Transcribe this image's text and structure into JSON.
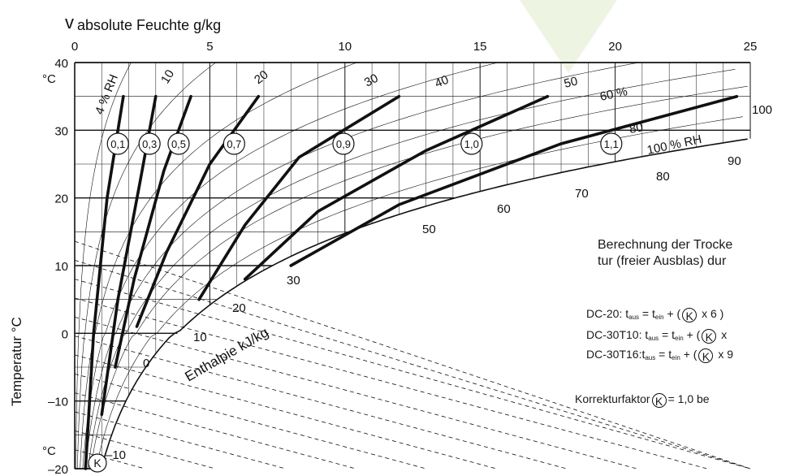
{
  "chart_data": {
    "type": "line",
    "title": "",
    "xlabel": "absolute Feuchte g/kg",
    "x_axis_symbol": "v",
    "ylabel": "Temperatur °C",
    "y_unit_top": "°C",
    "y_unit_bottom": "°C",
    "xlim": [
      0,
      25
    ],
    "ylim": [
      -20,
      40
    ],
    "x_ticks": [
      "0",
      "5",
      "10",
      "15",
      "20",
      "25"
    ],
    "y_ticks": [
      "40",
      "30",
      "20",
      "10",
      "0",
      "-10",
      "-20"
    ],
    "grid": true,
    "relative_humidity_labels": [
      "4 % RH",
      "10",
      "20",
      "30",
      "40",
      "50",
      "60 %",
      "80",
      "100 % RH"
    ],
    "enthalpy_labels": [
      "-10",
      "0",
      "10",
      "20",
      "30",
      "50",
      "60",
      "70",
      "80",
      "90",
      "100"
    ],
    "enthalpy_axis_label": "Enthalpie kJ/kg",
    "correction_factor_symbol": "K",
    "series": [
      {
        "name": "0,1",
        "x": [
          0.4,
          0.7,
          1.2,
          1.8
        ],
        "y": [
          -20,
          0,
          20,
          35
        ]
      },
      {
        "name": "0,3",
        "x": [
          1.0,
          1.6,
          2.4,
          3.0
        ],
        "y": [
          -12,
          5,
          22,
          35
        ]
      },
      {
        "name": "0,5",
        "x": [
          1.5,
          2.2,
          3.3,
          4.3
        ],
        "y": [
          -5,
          8,
          24,
          35
        ]
      },
      {
        "name": "0,7",
        "x": [
          2.3,
          3.4,
          5.0,
          6.8
        ],
        "y": [
          1,
          12,
          25,
          35
        ]
      },
      {
        "name": "0,9",
        "x": [
          4.6,
          6.3,
          8.3,
          12.0
        ],
        "y": [
          5,
          16,
          26,
          35
        ]
      },
      {
        "name": "1,0",
        "x": [
          6.3,
          9.0,
          13.0,
          17.5
        ],
        "y": [
          8,
          18,
          27,
          35
        ]
      },
      {
        "name": "1,1",
        "x": [
          8.0,
          12.0,
          18.0,
          24.5
        ],
        "y": [
          10,
          19,
          28,
          35
        ]
      }
    ]
  },
  "text": {
    "line1": "Berechnung der Trocke",
    "line2": "tur (freier Ausblas) dur",
    "f1_label": "DC-20: t",
    "f1_rest": " + (",
    "f1_end": " x 6 )",
    "f2_label": "DC-30T10: t",
    "f2_rest": " + (",
    "f2_end": " x",
    "f3_label": "DC-30T16:t",
    "f3_rest": " + (",
    "f3_end": " x 9",
    "sub_out": "aus",
    "sub_in": "ein",
    "eq": " = t",
    "note_pre": "Korrekturfaktor",
    "note_post": "= 1,0 be"
  },
  "colors": {
    "ink": "#111111",
    "grid": "#222222",
    "watermark": "#eef4e2"
  }
}
